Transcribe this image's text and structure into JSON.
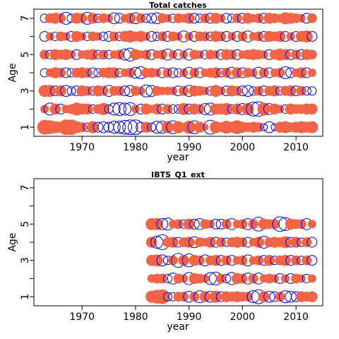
{
  "colors": {
    "positive": "#F26446",
    "negative": "#0000EE",
    "axis": "#000000"
  },
  "chart_data": [
    {
      "type": "scatter",
      "subtype": "bubble-residuals",
      "title": "Total catches",
      "xlabel": "year",
      "ylabel": "Age",
      "xlim": [
        1961,
        2015
      ],
      "ylim": [
        0.5,
        7.5
      ],
      "xticks": [
        1970,
        1980,
        1990,
        2000,
        2010
      ],
      "yticks": [
        1,
        2,
        3,
        4,
        5,
        6,
        7
      ],
      "ytick_labels": [
        "1",
        "",
        "3",
        "",
        "5",
        "",
        "7"
      ],
      "years": [
        1963,
        2013
      ],
      "ages": [
        1,
        2,
        3,
        4,
        5,
        6,
        7
      ],
      "residuals_by_age": {
        "1": [
          0.9,
          0.8,
          0.6,
          0.5,
          1.0,
          1.0,
          0.6,
          0.4,
          -0.3,
          0.6,
          -0.4,
          -0.5,
          -0.4,
          -0.6,
          -0.6,
          -0.8,
          -0.9,
          -0.9,
          -0.4,
          0.5,
          -0.3,
          -0.6,
          -0.6,
          0.6,
          -0.7,
          0.6,
          0.3,
          0.7,
          -0.7,
          0.5,
          0.2,
          -0.8,
          0.6,
          0.4,
          0.7,
          0.5,
          0.8,
          0.5,
          0.4,
          0.5,
          0.4,
          -0.2,
          -0.5,
          -0.2,
          0.5,
          0.6,
          0.4,
          0.5,
          0.6,
          0.5,
          0.6
        ],
        "2": [
          0.3,
          -0.6,
          0.5,
          -0.4,
          0.3,
          0.4,
          0.7,
          0.5,
          0.5,
          -0.3,
          0.4,
          0.6,
          -0.3,
          -0.6,
          -0.7,
          -0.6,
          -0.7,
          0.3,
          -0.4,
          0.5,
          0.3,
          0.5,
          -0.4,
          0.4,
          -0.3,
          -0.3,
          0.6,
          -0.4,
          0.5,
          0.4,
          -0.5,
          -0.6,
          0.5,
          0.5,
          0.6,
          -0.3,
          0.5,
          -0.5,
          0.6,
          -0.8,
          -0.9,
          0.7,
          -0.5,
          0.5,
          0.3,
          -0.3,
          0.5,
          0.4,
          0.4,
          0.5,
          0.5
        ],
        "3": [
          0.6,
          0.6,
          -0.4,
          0.5,
          -0.5,
          -0.3,
          -0.4,
          0.5,
          0.4,
          -0.3,
          0.5,
          0.4,
          -0.5,
          0.4,
          0.4,
          -0.4,
          -0.5,
          0.4,
          0.3,
          -0.6,
          -0.5,
          0.4,
          0.3,
          0.3,
          0.3,
          -0.4,
          0.4,
          -0.5,
          0.5,
          0.4,
          0.3,
          -0.3,
          0.6,
          0.3,
          -0.4,
          0.5,
          0.4,
          -0.4,
          -0.5,
          -0.3,
          0.4,
          -0.4,
          0.4,
          0.5,
          -0.3,
          0.4,
          0.5,
          -0.4,
          0.4,
          -0.3,
          -0.3
        ],
        "4": [
          -0.3,
          0.3,
          0.5,
          0.4,
          -0.4,
          -0.3,
          0.4,
          0.5,
          0.4,
          -0.4,
          -0.3,
          0.4,
          0.5,
          0.5,
          -0.3,
          0.3,
          0.4,
          -0.5,
          -0.6,
          0.4,
          0.4,
          0.3,
          -0.4,
          0.4,
          -0.4,
          -0.3,
          0.3,
          -0.5,
          0.4,
          -0.4,
          0.3,
          0.4,
          0.5,
          -0.3,
          0.4,
          -0.5,
          0.5,
          -0.4,
          0.4,
          0.3,
          -0.5,
          0.4,
          -0.4,
          0.3,
          0.4,
          -0.6,
          -0.4,
          0.3,
          0.5,
          -0.4,
          0.3
        ],
        "5": [
          0.4,
          -0.3,
          0.5,
          0.4,
          0.5,
          0.3,
          -0.4,
          0.3,
          0.4,
          0.5,
          -0.3,
          0.4,
          -0.3,
          0.3,
          0.4,
          -0.5,
          -0.7,
          0.5,
          0.3,
          0.4,
          -0.4,
          0.3,
          0.4,
          -0.5,
          0.3,
          -0.4,
          0.3,
          -0.5,
          0.4,
          0.3,
          -0.3,
          0.4,
          0.3,
          -0.4,
          0.5,
          0.4,
          -0.4,
          0.3,
          0.4,
          0.5,
          0.4,
          0.3,
          -0.4,
          0.4,
          0.6,
          0.5,
          -0.4,
          0.4,
          -0.4,
          0.5,
          0.4
        ],
        "6": [
          -0.4,
          0.3,
          -0.3,
          0.4,
          0.3,
          -0.4,
          0.5,
          0.3,
          -0.3,
          0.4,
          0.3,
          -0.3,
          -0.4,
          0.4,
          -0.3,
          0.5,
          0.6,
          0.4,
          0.5,
          0.3,
          -0.4,
          -0.3,
          0.4,
          -0.4,
          0.4,
          0.3,
          -0.5,
          0.3,
          -0.4,
          0.4,
          0.4,
          -0.3,
          0.5,
          0.4,
          -0.4,
          0.3,
          -0.4,
          0.4,
          -0.5,
          0.3,
          0.4,
          -0.4,
          0.5,
          0.4,
          0.5,
          -0.4,
          0.3,
          -0.4,
          0.5,
          0.6,
          -0.4
        ],
        "7": [
          -0.3,
          0.4,
          0.5,
          0.4,
          -0.6,
          -0.3,
          0.5,
          0.4,
          -0.6,
          0.5,
          -0.3,
          0.4,
          0.3,
          -0.5,
          -0.4,
          0.3,
          0.5,
          -0.5,
          0.4,
          -0.3,
          -0.4,
          -0.5,
          0.4,
          0.3,
          -0.3,
          0.4,
          0.3,
          0.5,
          -0.4,
          -0.3,
          0.4,
          -0.4,
          0.5,
          0.3,
          -0.4,
          -0.3,
          0.4,
          -0.4,
          0.5,
          0.3,
          0.4,
          -0.4,
          0.5,
          0.4,
          0.3,
          0.6,
          0.5,
          0.4,
          0.3,
          -0.4,
          0.4
        ]
      }
    },
    {
      "type": "scatter",
      "subtype": "bubble-residuals",
      "title": "IBTS_Q1_ext",
      "xlabel": "year",
      "ylabel": "Age",
      "xlim": [
        1961,
        2015
      ],
      "ylim": [
        0.5,
        7.5
      ],
      "xticks": [
        1970,
        1980,
        1990,
        2000,
        2010
      ],
      "yticks": [
        1,
        2,
        3,
        4,
        5,
        6,
        7
      ],
      "ytick_labels": [
        "1",
        "",
        "3",
        "",
        "5",
        "",
        "7"
      ],
      "years": [
        1983,
        2013
      ],
      "ages": [
        1,
        2,
        3,
        4,
        5
      ],
      "residuals_by_age": {
        "1": [
          0.6,
          0.8,
          0.9,
          -0.3,
          -0.3,
          0.4,
          0.4,
          -0.5,
          0.4,
          -0.6,
          0.5,
          -0.5,
          0.6,
          -0.4,
          0.5,
          0.4,
          0.5,
          0.4,
          0.4,
          -0.6,
          -0.8,
          0.5,
          -0.5,
          -0.4,
          0.4,
          -0.6,
          -0.5,
          -0.4,
          0.5,
          0.4,
          0.5
        ],
        "2": [
          0.3,
          0.4,
          0.4,
          -0.3,
          -0.5,
          0.4,
          0.3,
          -0.6,
          0.5,
          0.4,
          0.3,
          -0.6,
          -0.7,
          0.4,
          -0.3,
          -0.6,
          0.5,
          0.4,
          -0.5,
          0.4,
          -0.5,
          0.3,
          0.4,
          0.3,
          -0.4,
          0.3,
          -0.4,
          0.4,
          0.3,
          -0.3,
          0.3
        ],
        "3": [
          0.5,
          0.6,
          -0.5,
          -0.3,
          0.4,
          -0.8,
          0.5,
          -0.7,
          0.5,
          0.4,
          -0.5,
          0.4,
          0.5,
          -0.4,
          0.4,
          -0.4,
          0.3,
          0.4,
          -0.5,
          0.3,
          0.4,
          -0.4,
          0.5,
          -0.3,
          0.4,
          0.5,
          -0.4,
          0.4,
          -0.3,
          0.4,
          -0.4
        ],
        "4": [
          0.5,
          -0.6,
          -0.9,
          0.4,
          0.5,
          -0.4,
          0.4,
          0.5,
          -0.5,
          0.4,
          0.3,
          0.5,
          -0.4,
          0.4,
          -0.3,
          0.4,
          0.5,
          0.4,
          -0.4,
          0.3,
          0.5,
          -0.6,
          0.4,
          0.5,
          0.4,
          0.6,
          -0.4,
          0.5,
          -0.3,
          0.4,
          -0.4
        ],
        "5": [
          0.6,
          0.6,
          -0.5,
          -0.6,
          0.3,
          0.4,
          -0.3,
          0.5,
          -0.4,
          -0.5,
          0.4,
          0.3,
          -0.4,
          -0.4,
          0.4,
          -0.5,
          0.3,
          0.4,
          -0.5,
          0.4,
          -0.8,
          0.5,
          0.4,
          0.4,
          -0.9,
          -0.7,
          0.5,
          0.4,
          0.4,
          -0.5,
          0.3
        ]
      }
    }
  ]
}
